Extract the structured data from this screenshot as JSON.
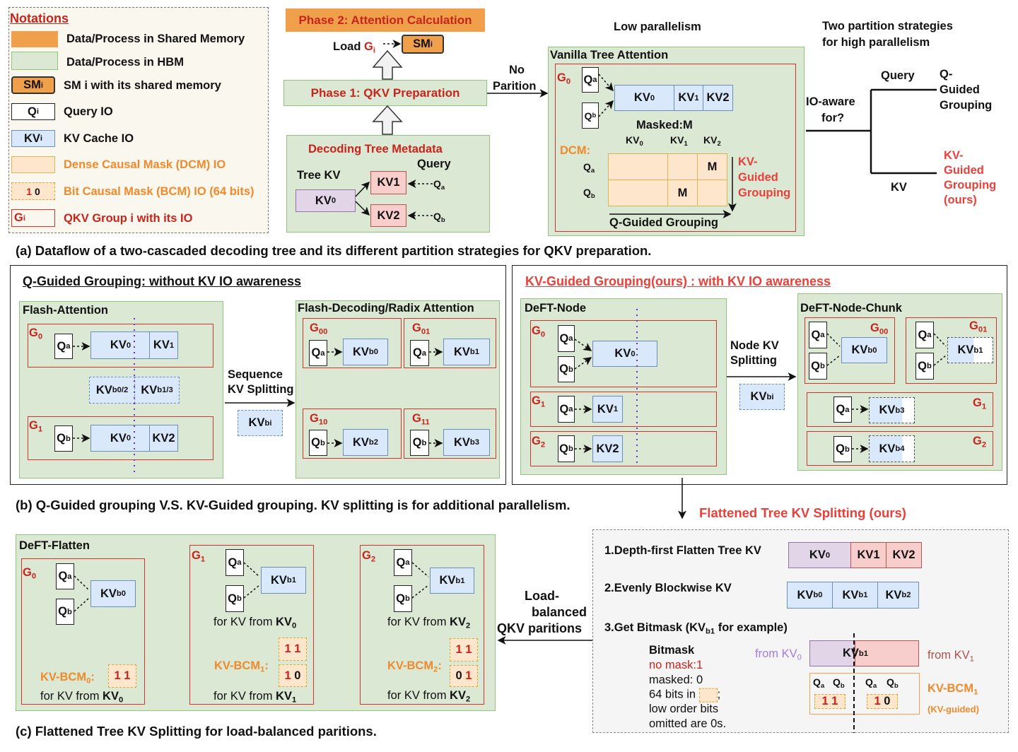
{
  "notations": {
    "title": "Notations",
    "shared_mem": "Data/Process in Shared Memory",
    "hbm": "Data/Process in HBM",
    "sm_sym": "SM_i",
    "sm": "SM i with its shared memory",
    "q_sym": "Q_i",
    "q": "Query IO",
    "kv_sym": "KV_i",
    "kv": "KV Cache IO",
    "dcm": "Dense Causal Mask (DCM) IO",
    "bcm_sym": "1 0",
    "bcm": "Bit Causal Mask (BCM) IO (64 bits)",
    "g_sym": "G_i",
    "g": "QKV Group i with its IO"
  },
  "phases": {
    "phase2": "Phase 2:  Attention Calculation",
    "load": "Load",
    "load_g": "G_i",
    "sm": "SM_i",
    "phase1": "Phase 1: QKV Preparation",
    "meta_title": "Decoding Tree Metadata",
    "query": "Query",
    "tree_kv": "Tree KV",
    "kv0": "KV_0",
    "kv1": "KV1",
    "kv2": "KV2",
    "qa": "Q_a",
    "qb": "Q_b",
    "no": "No",
    "partition": "Parition"
  },
  "vanilla": {
    "low": "Low parallelism",
    "title": "Vanilla Tree Attention",
    "g0": "G_0",
    "qa": "Q_a",
    "qb": "Q_b",
    "kv0": "KV_0",
    "kv1": "KV_1",
    "kv2": "KV2",
    "masked": "Masked:M",
    "h0": "KV_0",
    "h1": "KV_1",
    "h2": "KV_2",
    "dcm": "DCM:",
    "m": "M",
    "kvg": [
      "KV-",
      "Guided",
      "Grouping"
    ],
    "qg": "Q-Guided Grouping"
  },
  "strategies": {
    "title1": "Two partition strategies",
    "title2": "for  high parallelism",
    "io1": "IO-aware",
    "io2": "for?",
    "query": "Query",
    "kv": "KV",
    "qg": [
      "Q-",
      "Guided",
      "Grouping"
    ],
    "kvg": [
      "KV-",
      "Guided",
      "Grouping",
      "(ours)"
    ]
  },
  "caption_a": "(a) Dataflow of a two-cascaded decoding tree and its different partition strategies for QKV preparation.",
  "qguided": {
    "title": "Q-Guided Grouping: without KV IO awareness",
    "flash": "Flash-Attention",
    "g0": "G_0",
    "g1": "G_1",
    "qa": "Q_a",
    "qb": "Q_b",
    "kv0": "KV_0",
    "kv1": "KV_1",
    "kv2": "KV2",
    "split_a": "KV_b0/2",
    "split_b": "KV_b1/3",
    "seq1": "Sequence",
    "seq2": "KV Splitting",
    "kvbi": "KV_bi",
    "fd": "Flash-Decoding/Radix Attention",
    "g00": "G_00",
    "g01": "G_01",
    "g10": "G_10",
    "g11": "G_11",
    "kvb0": "KV_b0",
    "kvb1": "KV_b1",
    "kvb2": "KV_b2",
    "kvb3": "KV_b3"
  },
  "kvguided": {
    "title": "KV-Guided Grouping(ours) : with KV IO awareness",
    "node": "DeFT-Node",
    "g0": "G_0",
    "g1": "G_1",
    "g2": "G_2",
    "qa": "Q_a",
    "qb": "Q_b",
    "kv0": "KV_0",
    "kv1": "KV_1",
    "kv2": "KV2",
    "split1": "Node KV",
    "split2": "Splitting",
    "kvbi": "KV_bi",
    "chunk": "DeFT-Node-Chunk",
    "g00": "G_00",
    "g01": "G_01",
    "kvb0": "KV_b0",
    "kvb1": "KV_b1",
    "kvb3": "KV_b3",
    "kvb4": "KV_b4"
  },
  "caption_b": "(b) Q-Guided grouping V.S. KV-Guided grouping. KV splitting is for additional parallelism.",
  "flattened_title": "Flattened Tree KV Splitting (ours)",
  "flatten": {
    "title": "DeFT-Flatten",
    "g0": "G_0",
    "g1": "G_1",
    "g2": "G_2",
    "qa": "Q_a",
    "qb": "Q_b",
    "kvb0": "KV_b0",
    "kvb1": "KV_b1",
    "for": "for KV from",
    "kv0": "KV_0",
    "kv1": "KV_1",
    "kv2": "KV_2",
    "bcm0": "KV-BCM_0:",
    "bcm1": "KV-BCM_1:",
    "bcm2": "KV-BCM_2:",
    "bits0": "1 1",
    "bits1a": "1 1",
    "bits1b": "1 0",
    "bits2a": "1 1",
    "bits2b": "0 1"
  },
  "load_balanced": [
    "Load-",
    "balanced",
    "QKV paritions"
  ],
  "caption_c": "(c) Flattened Tree KV Splitting for load-balanced paritions.",
  "steps": {
    "s1": "1.Depth-first Flatten Tree KV",
    "kv0": "KV_0",
    "kv1": "KV1",
    "kv2": "KV2",
    "s2": "2.Evenly Blockwise KV",
    "kvb0": "KV_b0",
    "kvb1": "KV_b1",
    "kvb2": "KV_b2",
    "s3": "3.Get Bitmask (KV_b1 for example)",
    "bitmask": "Bitmask",
    "nomask": "no mask:1",
    "masked": "masked: 0",
    "bits64": "64 bits in",
    "semi": ";",
    "low": "low order bits",
    "omitted": "omitted are 0s.",
    "from0": "from KV_0",
    "from1": "from KV_1",
    "bar": "KV_b1",
    "qa": "Q_a",
    "qb": "Q_b",
    "bitsA": "1 1",
    "bitsB": "1 0",
    "bcm": "KV-BCM_1",
    "guided": "(KV-guided)"
  },
  "colors": {
    "shared": "#f0a04b",
    "hbm": "#dbe8d4",
    "kv": "#dae8fc",
    "dcm": "#fde6cc",
    "group": "#d2352e",
    "accent_red": "#c8241c",
    "accent_orange": "#f08a2c"
  }
}
